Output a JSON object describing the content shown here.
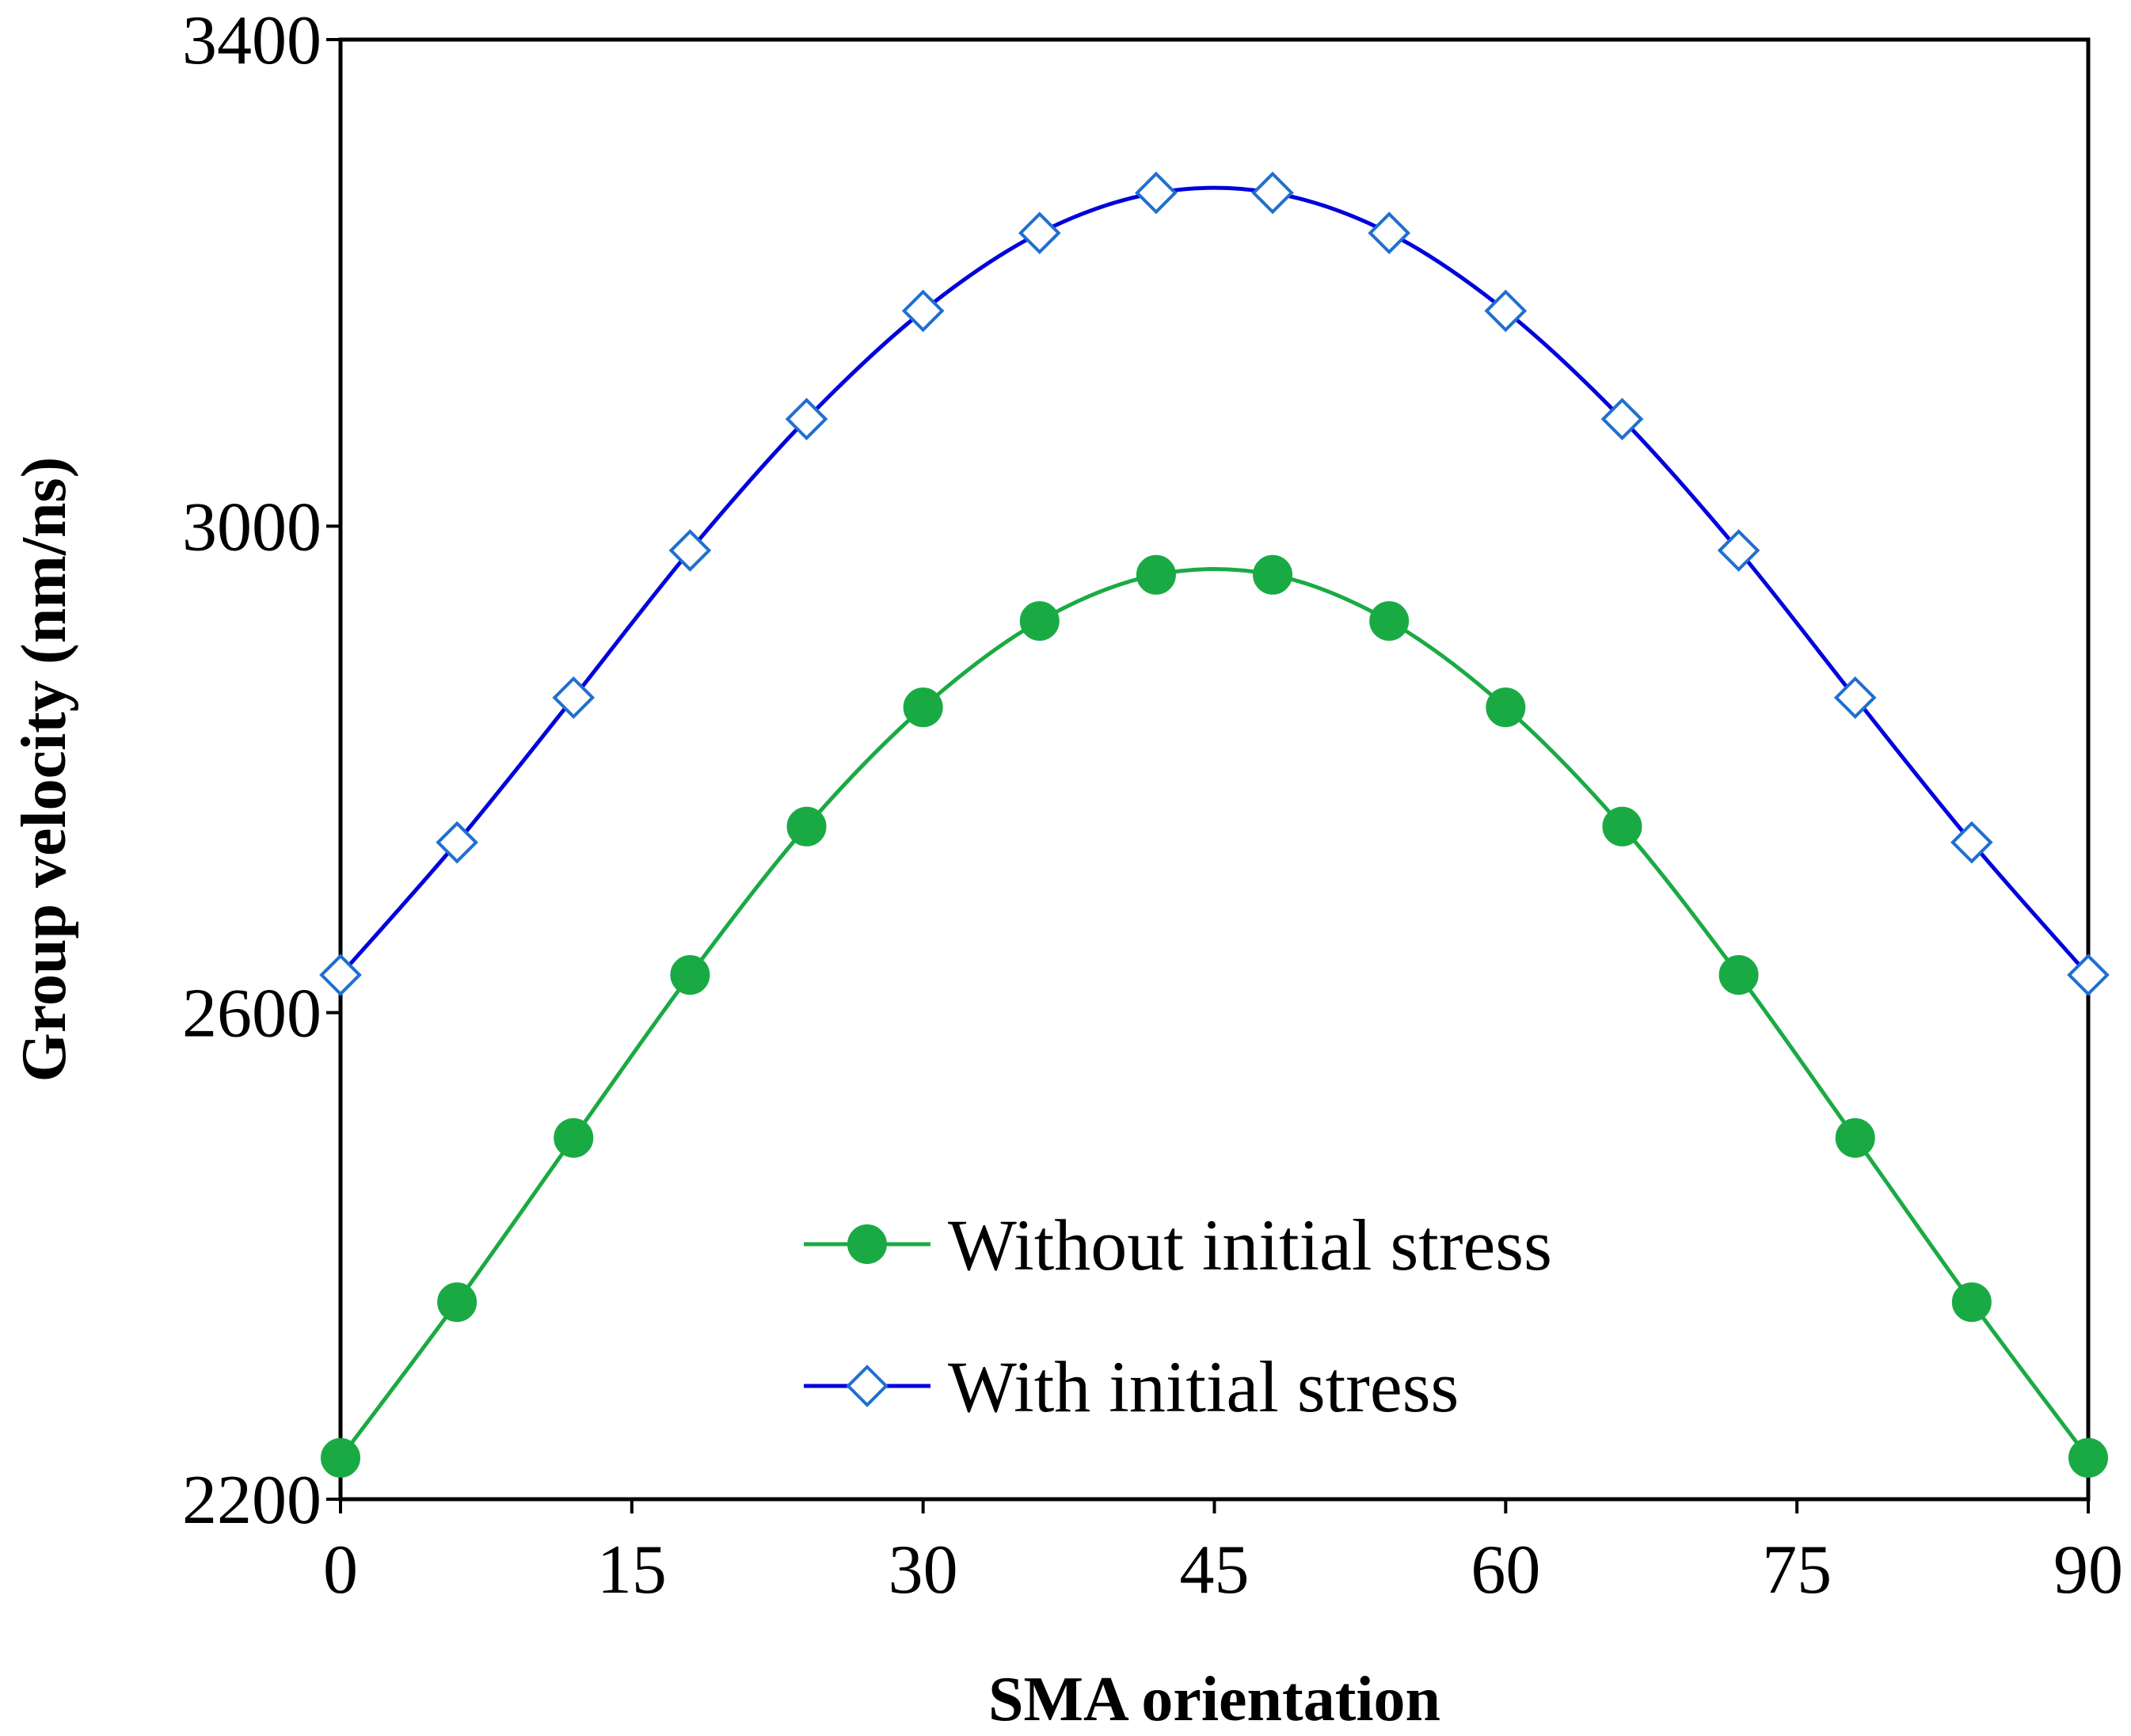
{
  "chart_data": {
    "type": "line",
    "xlabel": "SMA orientation",
    "ylabel": "Group velocity (nm/ns)",
    "xlim": [
      0,
      90
    ],
    "ylim": [
      2200,
      3400
    ],
    "xticks": [
      0,
      15,
      30,
      45,
      60,
      75,
      90
    ],
    "yticks": [
      2200,
      2600,
      3000,
      3400
    ],
    "grid": false,
    "legend_position": "bottom-center",
    "x": [
      0,
      6,
      12,
      18,
      24,
      30,
      36,
      42,
      48,
      54,
      60,
      66,
      72,
      78,
      84,
      90
    ],
    "series": [
      {
        "name": "Without initial stress",
        "color": "#1aaa44",
        "marker": "filled-circle",
        "values": [
          2234,
          2362,
          2497,
          2631,
          2753,
          2851,
          2922,
          2960,
          2960,
          2922,
          2851,
          2753,
          2631,
          2497,
          2362,
          2234
        ]
      },
      {
        "name": "With initial stress",
        "color": "#0000dd",
        "marker_color": "#1f6fd0",
        "marker": "open-diamond",
        "values": [
          2631,
          2740,
          2859,
          2980,
          3088,
          3177,
          3241,
          3274,
          3274,
          3241,
          3177,
          3088,
          2980,
          2859,
          2740,
          2631
        ]
      }
    ]
  }
}
